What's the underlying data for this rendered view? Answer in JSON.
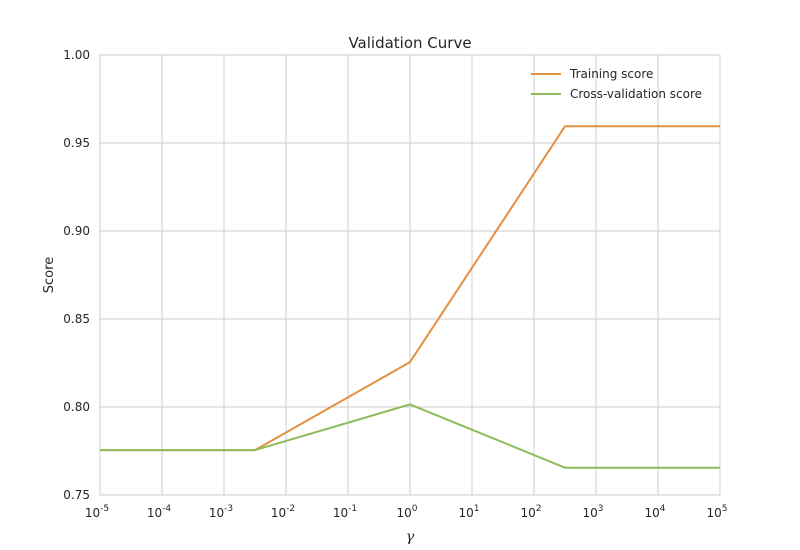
{
  "chart_data": {
    "type": "line",
    "title": "Validation Curve",
    "xlabel": "γ",
    "ylabel": "Score",
    "xscale": "log",
    "xlim": [
      1e-05,
      100000
    ],
    "ylim": [
      0.75,
      1.0
    ],
    "x_ticks": [
      {
        "base": "10",
        "exp": "-5",
        "value": 1e-05
      },
      {
        "base": "10",
        "exp": "-4",
        "value": 0.0001
      },
      {
        "base": "10",
        "exp": "-3",
        "value": 0.001
      },
      {
        "base": "10",
        "exp": "-2",
        "value": 0.01
      },
      {
        "base": "10",
        "exp": "-1",
        "value": 0.1
      },
      {
        "base": "10",
        "exp": "0",
        "value": 1
      },
      {
        "base": "10",
        "exp": "1",
        "value": 10
      },
      {
        "base": "10",
        "exp": "2",
        "value": 100
      },
      {
        "base": "10",
        "exp": "3",
        "value": 1000
      },
      {
        "base": "10",
        "exp": "4",
        "value": 10000
      },
      {
        "base": "10",
        "exp": "5",
        "value": 100000
      }
    ],
    "y_ticks": [
      {
        "label": "0.75",
        "value": 0.75
      },
      {
        "label": "0.80",
        "value": 0.8
      },
      {
        "label": "0.85",
        "value": 0.85
      },
      {
        "label": "0.90",
        "value": 0.9
      },
      {
        "label": "0.95",
        "value": 0.95
      },
      {
        "label": "1.00",
        "value": 1.0
      }
    ],
    "grid": true,
    "legend_position": "top-right",
    "series": [
      {
        "name": "Training score",
        "color": "#e1913f",
        "x": [
          1e-05,
          0.003162,
          1,
          316.2,
          100000
        ],
        "y": [
          0.7755,
          0.7755,
          0.8255,
          0.9595,
          0.9595
        ]
      },
      {
        "name": "Cross-validation score",
        "color": "#8cbb5c",
        "x": [
          1e-05,
          0.003162,
          1,
          316.2,
          100000
        ],
        "y": [
          0.7755,
          0.7755,
          0.8015,
          0.7655,
          0.7655
        ]
      }
    ]
  }
}
